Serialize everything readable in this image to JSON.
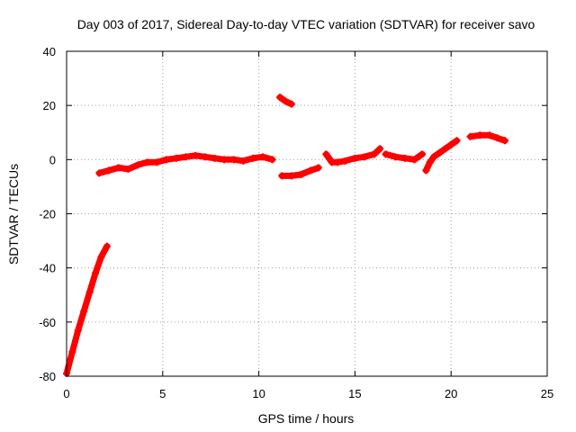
{
  "chart_data": {
    "type": "scatter",
    "title": "Day 003 of 2017, Sidereal Day-to-day VTEC variation (SDTVAR) for receiver savo",
    "xlabel": "GPS time / hours",
    "ylabel": "SDTVAR / TECUs",
    "xlim": [
      0,
      25
    ],
    "ylim": [
      -80,
      40
    ],
    "xticks": [
      0,
      5,
      10,
      15,
      20,
      25
    ],
    "yticks": [
      -80,
      -60,
      -40,
      -20,
      0,
      20,
      40
    ],
    "xtick_labels": [
      "0",
      "5",
      "10",
      "15",
      "20",
      "25"
    ],
    "ytick_labels": [
      "-80",
      "-60",
      "-40",
      "-20",
      "0",
      "20",
      "40"
    ],
    "grid": true,
    "marker": "plus",
    "series": [
      {
        "name": "SDTVAR",
        "color": "#ff0000",
        "segments": [
          [
            [
              0.0,
              -79
            ],
            [
              0.3,
              -71
            ],
            [
              0.6,
              -63
            ],
            [
              0.9,
              -56
            ],
            [
              1.2,
              -49
            ],
            [
              1.5,
              -42
            ],
            [
              1.8,
              -36
            ],
            [
              2.1,
              -32
            ]
          ],
          [
            [
              1.7,
              -5
            ],
            [
              2.2,
              -4
            ],
            [
              2.7,
              -3
            ],
            [
              3.2,
              -3.5
            ],
            [
              3.7,
              -2
            ],
            [
              4.2,
              -1
            ],
            [
              4.7,
              -1
            ],
            [
              5.2,
              0
            ],
            [
              5.7,
              0.5
            ],
            [
              6.2,
              1
            ],
            [
              6.7,
              1.5
            ],
            [
              7.2,
              1
            ],
            [
              7.7,
              0.5
            ],
            [
              8.2,
              0
            ],
            [
              8.7,
              0
            ],
            [
              9.2,
              -0.5
            ],
            [
              9.7,
              0.5
            ],
            [
              10.2,
              1
            ],
            [
              10.7,
              0
            ]
          ],
          [
            [
              11.1,
              23
            ],
            [
              11.4,
              21.5
            ],
            [
              11.7,
              20.5
            ]
          ],
          [
            [
              11.2,
              -6
            ],
            [
              11.7,
              -6
            ],
            [
              12.2,
              -5.5
            ],
            [
              12.7,
              -4
            ],
            [
              13.1,
              -3
            ]
          ],
          [
            [
              13.5,
              2
            ],
            [
              13.8,
              -1
            ],
            [
              14.1,
              -1
            ],
            [
              14.5,
              -0.5
            ],
            [
              15.0,
              0.5
            ],
            [
              15.5,
              1
            ],
            [
              16.0,
              2
            ],
            [
              16.3,
              4
            ]
          ],
          [
            [
              16.6,
              2
            ],
            [
              17.1,
              1
            ],
            [
              17.6,
              0.5
            ],
            [
              18.1,
              0
            ],
            [
              18.5,
              2
            ]
          ],
          [
            [
              18.7,
              -4
            ],
            [
              18.9,
              -1
            ],
            [
              19.1,
              1
            ],
            [
              19.4,
              2.5
            ],
            [
              19.7,
              4
            ],
            [
              20.0,
              5.5
            ],
            [
              20.3,
              7
            ]
          ],
          [
            [
              21.0,
              8.5
            ],
            [
              21.5,
              9
            ],
            [
              22.0,
              9
            ],
            [
              22.4,
              8
            ],
            [
              22.8,
              7
            ]
          ]
        ]
      }
    ]
  }
}
